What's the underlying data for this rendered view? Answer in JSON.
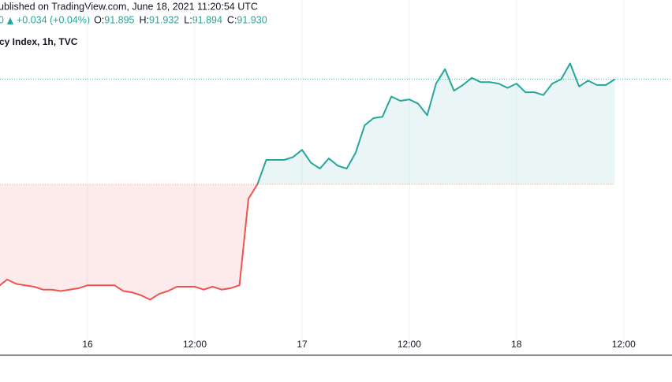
{
  "chart_data": {
    "type": "baseline",
    "published": "ublished on TradingView.com, June 18, 2021 11:20:54 UTC",
    "legend": {
      "prefix": "0",
      "change": "+0.034 (+0.04%)",
      "ohlc": [
        {
          "label": "O:",
          "value": "91.895"
        },
        {
          "label": "H:",
          "value": "91.932"
        },
        {
          "label": "L:",
          "value": "91.894"
        },
        {
          "label": "C:",
          "value": "91.930"
        }
      ]
    },
    "title": "cy Index, 1h, TVC",
    "x": [
      -10,
      -9,
      -8,
      -7,
      -6,
      -5,
      -4,
      -3,
      -2,
      -1,
      0,
      1,
      2,
      3,
      4,
      5,
      6,
      7,
      8,
      9,
      10,
      11,
      12,
      13,
      14,
      15,
      16,
      17,
      18,
      19,
      20,
      21,
      22,
      23,
      24,
      25,
      26,
      27,
      28,
      29,
      30,
      31,
      32,
      33,
      34,
      35,
      36,
      37,
      38,
      39,
      40,
      41,
      42,
      43,
      44,
      45,
      46,
      47,
      48,
      49,
      50,
      51,
      52,
      53,
      54,
      55,
      56,
      57,
      58,
      59
    ],
    "values": [
      90.49,
      90.54,
      90.51,
      90.5,
      90.49,
      90.47,
      90.47,
      90.46,
      90.47,
      90.48,
      90.5,
      90.5,
      90.5,
      90.5,
      90.46,
      90.45,
      90.43,
      90.4,
      90.44,
      90.46,
      90.49,
      90.49,
      90.49,
      90.47,
      90.49,
      90.47,
      90.48,
      90.5,
      91.1,
      91.2,
      91.37,
      91.37,
      91.37,
      91.39,
      91.44,
      91.35,
      91.31,
      91.38,
      91.33,
      91.31,
      91.42,
      91.61,
      91.66,
      91.67,
      91.81,
      91.78,
      91.79,
      91.76,
      91.68,
      91.9,
      92.0,
      91.85,
      91.89,
      91.94,
      91.91,
      91.91,
      91.9,
      91.87,
      91.9,
      91.84,
      91.84,
      91.82,
      91.9,
      91.93,
      92.04,
      91.88,
      91.92,
      91.89,
      91.89,
      91.93
    ],
    "baseline": 91.2,
    "up_color": "#26a69a",
    "down_color": "#ef5350",
    "xlim": [
      -9.8,
      65.4
    ],
    "ylim": [
      90.02,
      92.48
    ],
    "xticks": [
      {
        "value": 0,
        "label": "16"
      },
      {
        "value": 12,
        "label": "12:00"
      },
      {
        "value": 24,
        "label": "17"
      },
      {
        "value": 36,
        "label": "12:00"
      },
      {
        "value": 48,
        "label": "18"
      },
      {
        "value": 60,
        "label": "12:00"
      }
    ],
    "grid": true
  }
}
